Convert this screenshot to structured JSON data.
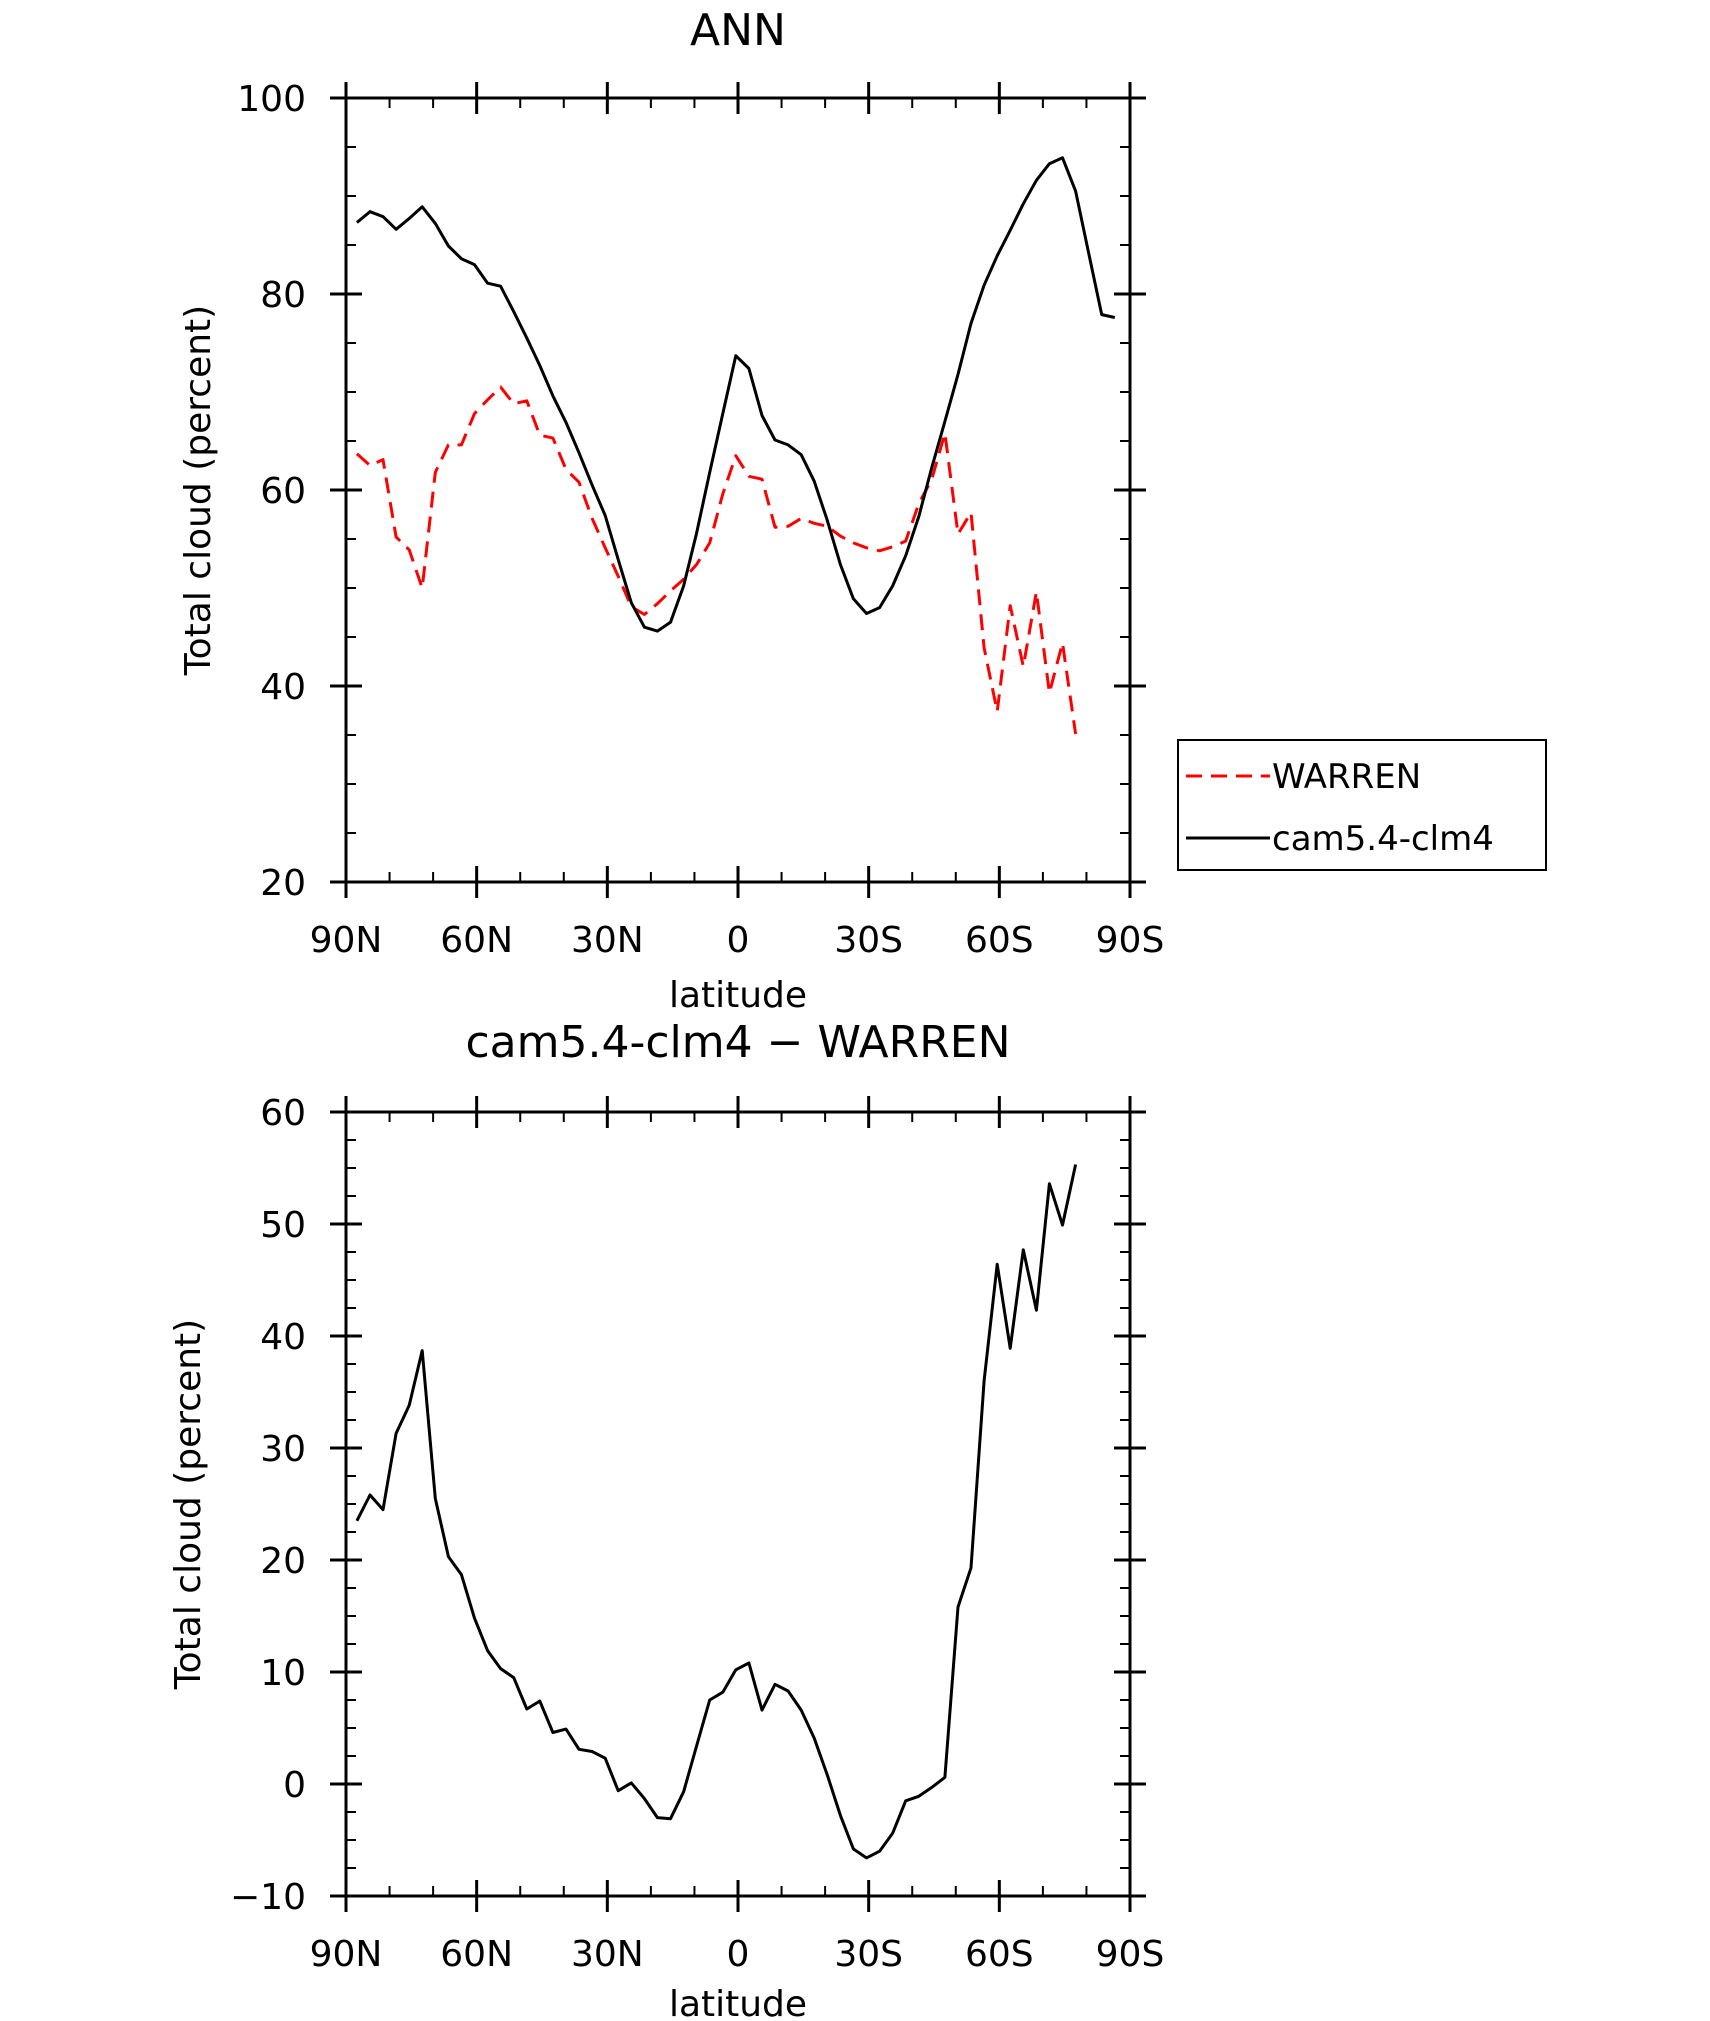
{
  "chart_data": [
    {
      "type": "line",
      "title": "ANN",
      "xlabel": "latitude",
      "ylabel": "Total cloud (percent)",
      "xlim": [
        90,
        -90
      ],
      "ylim": [
        20,
        100
      ],
      "xticks": [
        90,
        60,
        30,
        0,
        -30,
        -60,
        -90
      ],
      "xticklabels": [
        "90N",
        "60N",
        "30N",
        "0",
        "30S",
        "60S",
        "90S"
      ],
      "yticks": [
        20,
        40,
        60,
        80,
        100
      ],
      "yticklabels": [
        "20",
        "40",
        "60",
        "80",
        "100"
      ],
      "legend_position": "right",
      "series": [
        {
          "name": "WARREN",
          "color": "#ff0000",
          "style": "dashed",
          "x": [
            87.5,
            84.5,
            81.5,
            78.5,
            75.5,
            72.5,
            69.5,
            66.5,
            63.5,
            60.5,
            57.5,
            54.5,
            51.5,
            48.5,
            45.5,
            42.5,
            39.5,
            36.5,
            33.5,
            30.5,
            27.5,
            24.5,
            21.5,
            18.5,
            15.5,
            12.5,
            9.5,
            6.5,
            3.5,
            0.5,
            -2.5,
            -5.5,
            -8.5,
            -11.5,
            -14.5,
            -17.5,
            -20.5,
            -23.5,
            -26.5,
            -29.5,
            -32.5,
            -35.5,
            -38.5,
            -41.5,
            -44.5,
            -47.5,
            -50.5,
            -53.5,
            -56.5,
            -59.5,
            -62.5,
            -65.5,
            -68.5,
            -71.5,
            -74.5,
            -77.5
          ],
          "y": [
            63.7,
            62.5,
            63.1,
            55.2,
            53.9,
            50.0,
            61.8,
            64.6,
            64.6,
            67.8,
            69.2,
            70.5,
            68.8,
            69.1,
            65.6,
            65.3,
            62.1,
            60.8,
            57.1,
            54.1,
            51.2,
            48.1,
            47.3,
            48.4,
            49.7,
            50.9,
            52.4,
            54.6,
            59.6,
            63.5,
            61.4,
            61.1,
            56.2,
            56.3,
            57.1,
            56.6,
            56.3,
            55.3,
            54.6,
            54.1,
            53.8,
            54.2,
            54.8,
            58.6,
            61.1,
            65.8,
            55.5,
            57.7,
            43.9,
            37.4,
            48.2,
            42.0,
            49.6,
            39.3,
            44.4,
            35.1
          ]
        },
        {
          "name": "cam5.4-clm4",
          "color": "#000000",
          "style": "solid",
          "x": [
            87.5,
            84.5,
            81.5,
            78.5,
            75.5,
            72.5,
            69.5,
            66.5,
            63.5,
            60.5,
            57.5,
            54.5,
            51.5,
            48.5,
            45.5,
            42.5,
            39.5,
            36.5,
            33.5,
            30.5,
            27.5,
            24.5,
            21.5,
            18.5,
            15.5,
            12.5,
            9.5,
            6.5,
            3.5,
            0.5,
            -2.5,
            -5.5,
            -8.5,
            -11.5,
            -14.5,
            -17.5,
            -20.5,
            -23.5,
            -26.5,
            -29.5,
            -32.5,
            -35.5,
            -38.5,
            -41.5,
            -44.5,
            -47.5,
            -50.5,
            -53.5,
            -56.5,
            -59.5,
            -62.5,
            -65.5,
            -68.5,
            -71.5,
            -74.5,
            -77.5,
            -80.5,
            -83.5,
            -86.5
          ],
          "y": [
            87.3,
            88.4,
            87.9,
            86.6,
            87.7,
            88.9,
            87.2,
            84.9,
            83.6,
            83.0,
            81.1,
            80.8,
            78.2,
            75.5,
            72.7,
            69.6,
            66.9,
            63.8,
            60.5,
            57.4,
            52.9,
            48.5,
            46.0,
            45.6,
            46.5,
            50.2,
            55.6,
            61.8,
            67.8,
            73.7,
            72.4,
            67.6,
            65.1,
            64.6,
            63.6,
            60.9,
            56.9,
            52.4,
            48.9,
            47.4,
            48.0,
            50.2,
            53.3,
            57.3,
            62.3,
            67.0,
            71.8,
            77.0,
            80.9,
            83.9,
            86.5,
            89.2,
            91.6,
            93.3,
            93.9,
            90.5,
            84.2,
            77.9,
            77.6
          ]
        }
      ]
    },
    {
      "type": "line",
      "title": "cam5.4-clm4 − WARREN",
      "xlabel": "latitude",
      "ylabel": "Total cloud (percent)",
      "xlim": [
        90,
        -90
      ],
      "ylim": [
        -10,
        60
      ],
      "xticks": [
        90,
        60,
        30,
        0,
        -30,
        -60,
        -90
      ],
      "xticklabels": [
        "90N",
        "60N",
        "30N",
        "0",
        "30S",
        "60S",
        "90S"
      ],
      "yticks": [
        -10,
        0,
        10,
        20,
        30,
        40,
        50,
        60
      ],
      "yticklabels": [
        "−10",
        "0",
        "10",
        "20",
        "30",
        "40",
        "50",
        "60"
      ],
      "series": [
        {
          "color": "#000000",
          "style": "solid",
          "x": [
            87.5,
            84.5,
            81.5,
            78.5,
            75.5,
            72.5,
            69.5,
            66.5,
            63.5,
            60.5,
            57.5,
            54.5,
            51.5,
            48.5,
            45.5,
            42.5,
            39.5,
            36.5,
            33.5,
            30.5,
            27.5,
            24.5,
            21.5,
            18.5,
            15.5,
            12.5,
            9.5,
            6.5,
            3.5,
            0.5,
            -2.5,
            -5.5,
            -8.5,
            -11.5,
            -14.5,
            -17.5,
            -20.5,
            -23.5,
            -26.5,
            -29.5,
            -32.5,
            -35.5,
            -38.5,
            -41.5,
            -44.5,
            -47.5,
            -50.5,
            -53.5,
            -56.5,
            -59.5,
            -62.5,
            -65.5,
            -68.5,
            -71.5,
            -74.5,
            -77.5
          ],
          "y": [
            23.5,
            25.8,
            24.5,
            31.3,
            33.8,
            38.7,
            25.5,
            20.3,
            18.7,
            14.8,
            11.9,
            10.3,
            9.5,
            6.7,
            7.4,
            4.6,
            4.9,
            3.1,
            2.9,
            2.3,
            -0.6,
            0.1,
            -1.3,
            -3.0,
            -3.1,
            -0.7,
            3.4,
            7.5,
            8.2,
            10.2,
            10.8,
            6.6,
            8.9,
            8.3,
            6.6,
            4.1,
            0.8,
            -2.8,
            -5.8,
            -6.6,
            -6.0,
            -4.4,
            -1.5,
            -1.1,
            -0.3,
            0.6,
            15.8,
            19.3,
            36.0,
            46.4,
            38.9,
            47.7,
            42.3,
            53.6,
            49.9,
            55.3
          ]
        }
      ]
    }
  ]
}
